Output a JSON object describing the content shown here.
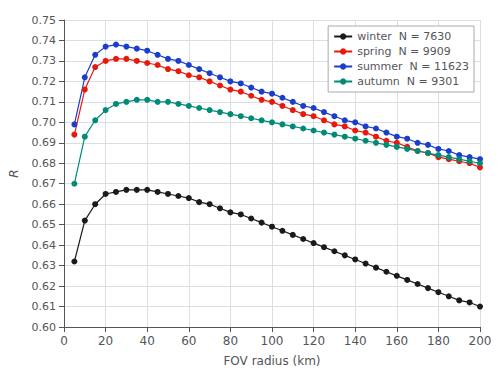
{
  "chart_data": {
    "type": "line",
    "xlabel": "FOV radius (km)",
    "ylabel": "R",
    "x": [
      5,
      10,
      15,
      20,
      25,
      30,
      35,
      40,
      45,
      50,
      55,
      60,
      65,
      70,
      75,
      80,
      85,
      90,
      95,
      100,
      105,
      110,
      115,
      120,
      125,
      130,
      135,
      140,
      145,
      150,
      155,
      160,
      165,
      170,
      175,
      180,
      185,
      190,
      195,
      200
    ],
    "series": [
      {
        "name": "winter  N = 7630",
        "color": "#1a1a1a",
        "values": [
          0.632,
          0.652,
          0.66,
          0.665,
          0.666,
          0.667,
          0.667,
          0.667,
          0.666,
          0.665,
          0.664,
          0.663,
          0.661,
          0.66,
          0.658,
          0.656,
          0.655,
          0.653,
          0.651,
          0.649,
          0.647,
          0.645,
          0.643,
          0.641,
          0.639,
          0.637,
          0.635,
          0.633,
          0.631,
          0.629,
          0.627,
          0.625,
          0.623,
          0.621,
          0.619,
          0.617,
          0.615,
          0.613,
          0.612,
          0.61
        ]
      },
      {
        "name": "spring  N = 9909",
        "color": "#e8190a",
        "values": [
          0.694,
          0.716,
          0.727,
          0.73,
          0.731,
          0.731,
          0.73,
          0.729,
          0.728,
          0.726,
          0.725,
          0.723,
          0.722,
          0.72,
          0.718,
          0.716,
          0.715,
          0.713,
          0.711,
          0.71,
          0.708,
          0.706,
          0.704,
          0.703,
          0.701,
          0.699,
          0.698,
          0.696,
          0.695,
          0.693,
          0.691,
          0.69,
          0.688,
          0.686,
          0.685,
          0.683,
          0.682,
          0.681,
          0.68,
          0.678
        ]
      },
      {
        "name": "summer  N = 11623",
        "color": "#1a3eca",
        "values": [
          0.699,
          0.722,
          0.733,
          0.737,
          0.738,
          0.737,
          0.736,
          0.735,
          0.733,
          0.731,
          0.73,
          0.728,
          0.726,
          0.724,
          0.722,
          0.72,
          0.719,
          0.717,
          0.715,
          0.714,
          0.712,
          0.71,
          0.708,
          0.707,
          0.705,
          0.703,
          0.701,
          0.7,
          0.698,
          0.697,
          0.695,
          0.693,
          0.692,
          0.69,
          0.689,
          0.687,
          0.686,
          0.684,
          0.683,
          0.682
        ]
      },
      {
        "name": "autumn  N = 9301",
        "color": "#008b76",
        "values": [
          0.67,
          0.693,
          0.701,
          0.706,
          0.709,
          0.71,
          0.711,
          0.711,
          0.71,
          0.71,
          0.709,
          0.708,
          0.707,
          0.706,
          0.705,
          0.704,
          0.703,
          0.702,
          0.701,
          0.7,
          0.699,
          0.698,
          0.697,
          0.696,
          0.695,
          0.694,
          0.693,
          0.692,
          0.691,
          0.69,
          0.689,
          0.688,
          0.687,
          0.686,
          0.685,
          0.684,
          0.683,
          0.682,
          0.681,
          0.68
        ]
      }
    ],
    "xlim": [
      0,
      200
    ],
    "xticks": [
      0,
      20,
      40,
      60,
      80,
      100,
      120,
      140,
      160,
      180,
      200
    ],
    "ylim": [
      0.6,
      0.75
    ],
    "yticks": [
      {
        "value": 0.6,
        "label": "0.60"
      },
      0.61,
      0.62,
      0.63,
      0.64,
      0.65,
      0.66,
      0.67,
      0.68,
      0.69,
      {
        "value": 0.7,
        "label": "0.70"
      },
      0.71,
      0.72,
      0.73,
      0.74,
      0.75
    ],
    "grid": true,
    "legend": "upper right",
    "marker": "circle",
    "line_style": "solid"
  }
}
